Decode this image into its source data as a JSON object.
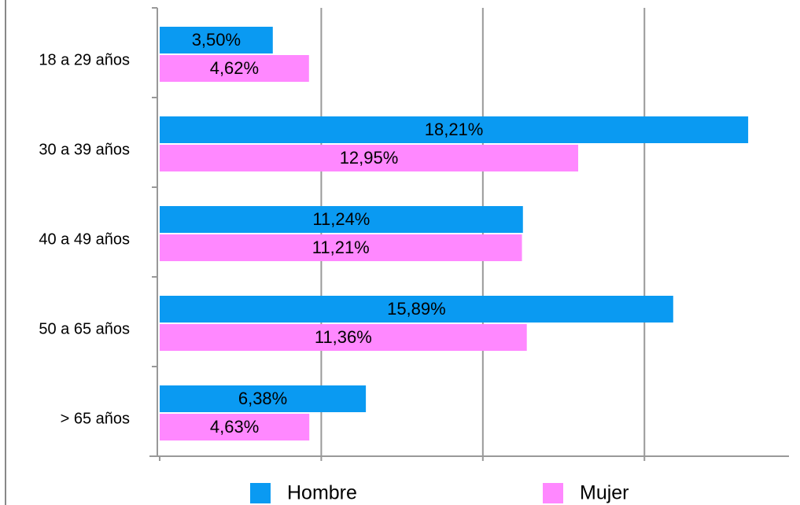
{
  "chart_data": {
    "type": "hbar",
    "categories": [
      "18 a 29 años",
      "30 a 39 años",
      "40 a 49 años",
      "50 a 65 años",
      "> 65 años"
    ],
    "series": [
      {
        "name": "Hombre",
        "color": "#0a9af2",
        "values": [
          3.5,
          18.21,
          11.24,
          15.89,
          6.38
        ],
        "value_labels": [
          "3,50%",
          "18,21%",
          "11,24%",
          "15,89%",
          "6,38%"
        ]
      },
      {
        "name": "Mujer",
        "color": "#ff88ff",
        "values": [
          4.62,
          12.95,
          11.21,
          11.36,
          4.63
        ],
        "value_labels": [
          "4,62%",
          "12,95%",
          "11,21%",
          "11,36%",
          "4,63%"
        ]
      }
    ],
    "xlim": [
      0,
      19.4
    ],
    "xticks": [
      0,
      5,
      10,
      15
    ],
    "grid": true
  }
}
